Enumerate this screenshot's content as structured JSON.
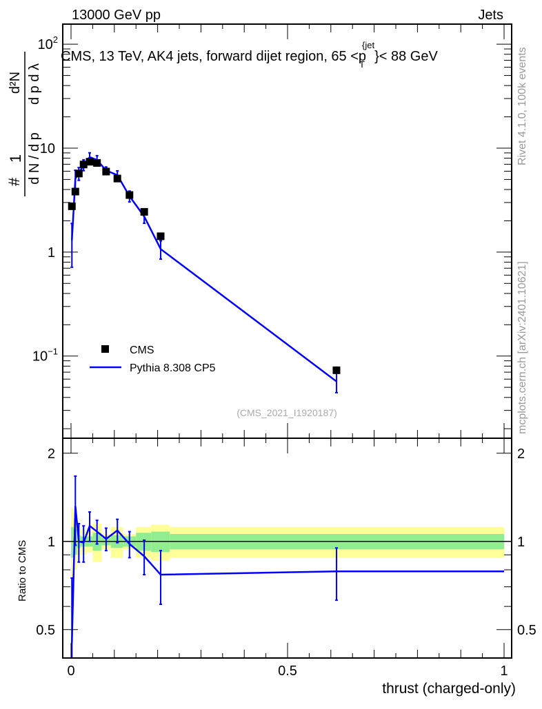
{
  "chart_data": [
    {
      "type": "scatter",
      "panel": "main",
      "header_left": "13000 GeV pp",
      "header_right": "Jets",
      "title": "CMS, 13 TeV, AK4 jets, forward dijet region, 65 <p_T^{jet}< 88 GeV",
      "title_main": "CMS, 13 TeV, AK4 jets, forward dijet region, 65 <p",
      "title_sup": "{jet",
      "title_sub": "T",
      "title_end": "}< 88 GeV",
      "ylabel": "1/(dN/dpT) d²N/(dpT dλ)",
      "ylabel_parts": {
        "num1": "1",
        "den1": "d N / d p",
        "num2": "d²N",
        "den2": "d p  d λ",
        "hash": "#",
        "sub": "T"
      },
      "yscale": "log",
      "ylim": [
        0.0162,
        156
      ],
      "yticks": [
        {
          "v": 100,
          "base": "10",
          "exp": "2"
        },
        {
          "v": 10,
          "label": "10"
        },
        {
          "v": 1,
          "label": "1"
        },
        {
          "v": 0.1,
          "base": "10",
          "exp": "−1"
        }
      ],
      "xlim": [
        -0.02,
        1.02
      ],
      "analysis_id": "(CMS_2021_I1920187)",
      "legend": {
        "placement": "bottom-left",
        "entries": [
          "CMS",
          "Pythia 8.308 CP5"
        ]
      },
      "series": [
        {
          "name": "CMS",
          "marker": "square",
          "color": "#000000",
          "x": [
            0.002,
            0.01,
            0.018,
            0.029,
            0.043,
            0.06,
            0.081,
            0.107,
            0.135,
            0.169,
            0.207,
            0.613
          ],
          "y": [
            2.76,
            3.82,
            5.7,
            6.96,
            7.4,
            7.2,
            5.95,
            5.1,
            3.54,
            2.44,
            1.42,
            0.073
          ]
        },
        {
          "name": "Pythia 8.308 CP5",
          "marker": "line",
          "color": "#0000ff",
          "x": [
            0.002,
            0.01,
            0.018,
            0.029,
            0.043,
            0.06,
            0.081,
            0.107,
            0.135,
            0.169,
            0.207,
            0.613
          ],
          "y": [
            1.3,
            5.1,
            5.7,
            6.9,
            8.2,
            7.7,
            6.1,
            5.5,
            3.45,
            2.2,
            1.07,
            0.057
          ],
          "yerr_rel": [
            0.45,
            0.2,
            0.14,
            0.12,
            0.1,
            0.1,
            0.08,
            0.1,
            0.12,
            0.14,
            0.2,
            0.22
          ]
        }
      ],
      "side_text": [
        "Rivet 4.1.0,  100k events",
        "mcplots.cern.ch [arXiv:2401.10621]"
      ]
    },
    {
      "type": "line",
      "panel": "ratio",
      "ylabel": "Ratio to CMS",
      "xlabel": "thrust (charged-only)",
      "yscale": "log",
      "ylim": [
        0.4,
        2.25
      ],
      "yticks": [
        {
          "v": 2,
          "label": "2"
        },
        {
          "v": 1,
          "label": "1"
        },
        {
          "v": 0.5,
          "label": "0.5"
        }
      ],
      "xticks": [
        {
          "v": 0,
          "label": "0"
        },
        {
          "v": 0.5,
          "label": "0.5"
        },
        {
          "v": 1,
          "label": "1"
        }
      ],
      "bands": {
        "edges": [
          0,
          0.006,
          0.014,
          0.022,
          0.035,
          0.05,
          0.07,
          0.092,
          0.12,
          0.15,
          0.185,
          0.228,
          1.0
        ],
        "yellow_half": [
          0.3,
          0.2,
          0.1,
          0.1,
          0.08,
          0.15,
          0.06,
          0.12,
          0.06,
          0.12,
          0.14,
          0.12
        ],
        "green_half": [
          0.12,
          0.1,
          0.05,
          0.04,
          0.04,
          0.07,
          0.03,
          0.05,
          0.04,
          0.07,
          0.08,
          0.06
        ],
        "yellow_color": "#ffff99",
        "green_color": "#90ee90"
      },
      "series": [
        {
          "name": "Pythia 8.308 CP5 / CMS",
          "color": "#0000ff",
          "x": [
            0.002,
            0.01,
            0.018,
            0.029,
            0.043,
            0.06,
            0.081,
            0.107,
            0.135,
            0.169,
            0.207,
            0.613
          ],
          "y": [
            0.45,
            1.32,
            1.0,
            0.99,
            1.13,
            1.08,
            1.02,
            1.09,
            0.98,
            0.89,
            0.77,
            0.79
          ],
          "err": [
            0.3,
            0.35,
            0.15,
            0.14,
            0.13,
            0.1,
            0.09,
            0.1,
            0.1,
            0.12,
            0.16,
            0.16
          ]
        }
      ]
    }
  ]
}
